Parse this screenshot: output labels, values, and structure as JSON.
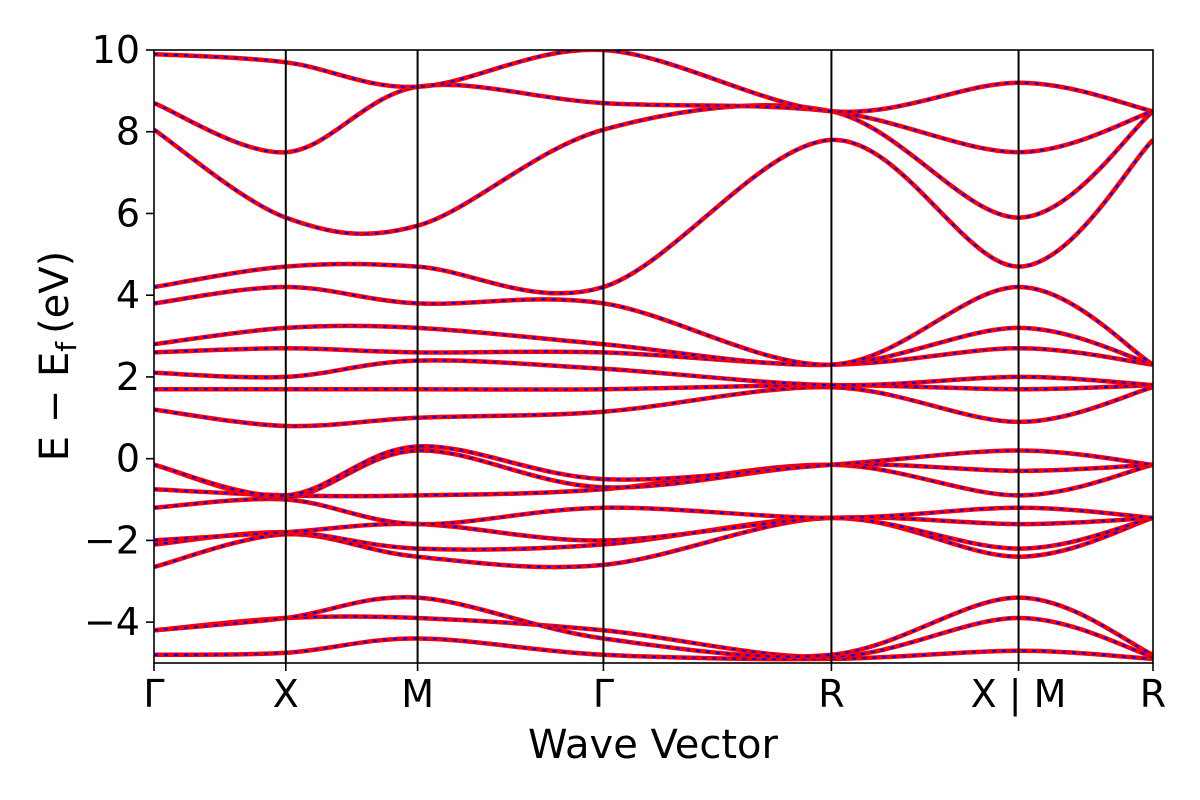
{
  "chart_data": {
    "type": "line",
    "title": "",
    "xlabel": "Wave Vector",
    "ylabel": "E − E",
    "ylabel_subscript": "f",
    "ylabel_unit": "(eV)",
    "ylim": [
      -5,
      10
    ],
    "yticks": [
      -4,
      -2,
      0,
      2,
      4,
      6,
      8,
      10
    ],
    "ytick_labels": [
      "−4",
      "−2",
      "0",
      "2",
      "4",
      "6",
      "8",
      "10"
    ],
    "xlim": [
      0,
      7.58
    ],
    "kpath": [
      {
        "label": "Γ",
        "x": 0.0
      },
      {
        "label": "X",
        "x": 1.0
      },
      {
        "label": "M",
        "x": 2.0
      },
      {
        "label": "Γ",
        "x": 3.41
      },
      {
        "label": "R",
        "x": 5.14
      },
      {
        "label": "X | M",
        "x": 6.56
      },
      {
        "label": "R",
        "x": 7.58
      }
    ],
    "grid": false,
    "legend": "none",
    "colors": {
      "band_solid": "#ff0000",
      "band_dashed": "#0000ff",
      "frame": "#000000"
    },
    "bands": [
      {
        "x": [
          0,
          1.0,
          2.0,
          3.41,
          5.14,
          6.56,
          7.58
        ],
        "y": [
          -4.8,
          -4.75,
          -4.4,
          -4.8,
          -4.9,
          -4.7,
          -4.9
        ]
      },
      {
        "x": [
          0,
          1.0,
          2.0,
          3.41,
          5.14,
          6.56,
          7.58
        ],
        "y": [
          -4.2,
          -3.9,
          -3.9,
          -4.2,
          -4.85,
          -3.9,
          -4.85
        ]
      },
      {
        "x": [
          0,
          1.0,
          2.0,
          3.41,
          5.14,
          6.56,
          7.58
        ],
        "y": [
          -4.2,
          -3.9,
          -3.4,
          -4.4,
          -4.8,
          -3.4,
          -4.8
        ]
      },
      {
        "x": [
          0,
          1.0,
          2.0,
          3.41,
          5.14,
          6.56,
          7.58
        ],
        "y": [
          -2.65,
          -1.85,
          -2.4,
          -2.6,
          -1.45,
          -2.4,
          -1.45
        ]
      },
      {
        "x": [
          0,
          1.0,
          2.0,
          3.41,
          5.14,
          6.56,
          7.58
        ],
        "y": [
          -2.1,
          -1.8,
          -2.2,
          -2.1,
          -1.45,
          -2.2,
          -1.45
        ]
      },
      {
        "x": [
          0,
          1.0,
          2.0,
          3.41,
          5.14,
          6.56,
          7.58
        ],
        "y": [
          -2.0,
          -1.8,
          -1.6,
          -2.0,
          -1.45,
          -1.6,
          -1.45
        ]
      },
      {
        "x": [
          0,
          1.0,
          2.0,
          3.41,
          5.14,
          6.56,
          7.58
        ],
        "y": [
          -1.2,
          -1.0,
          -1.6,
          -1.2,
          -1.45,
          -1.2,
          -1.45
        ]
      },
      {
        "x": [
          0,
          1.0,
          2.0,
          3.41,
          5.14,
          6.56,
          7.58
        ],
        "y": [
          -0.75,
          -0.9,
          -0.9,
          -0.75,
          -0.15,
          -0.9,
          -0.15
        ]
      },
      {
        "x": [
          0,
          1.0,
          2.0,
          3.41,
          5.14,
          6.56,
          7.58
        ],
        "y": [
          -0.15,
          -0.95,
          0.2,
          -0.7,
          -0.15,
          -0.3,
          -0.15
        ]
      },
      {
        "x": [
          0,
          1.0,
          2.0,
          3.41,
          5.14,
          6.56,
          7.58
        ],
        "y": [
          -0.15,
          -0.9,
          0.3,
          -0.5,
          -0.15,
          0.2,
          -0.15
        ]
      },
      {
        "x": [
          0,
          1.0,
          2.0,
          3.41,
          5.14,
          6.56,
          7.58
        ],
        "y": [
          1.2,
          0.8,
          1.0,
          1.15,
          1.75,
          0.9,
          1.75
        ]
      },
      {
        "x": [
          0,
          1.0,
          2.0,
          3.41,
          5.14,
          6.56,
          7.58
        ],
        "y": [
          1.7,
          1.7,
          1.7,
          1.7,
          1.8,
          1.7,
          1.8
        ]
      },
      {
        "x": [
          0,
          1.0,
          2.0,
          3.41,
          5.14,
          6.56,
          7.58
        ],
        "y": [
          2.1,
          2.0,
          2.4,
          2.2,
          1.8,
          2.0,
          1.8
        ]
      },
      {
        "x": [
          0,
          1.0,
          2.0,
          3.41,
          5.14,
          6.56,
          7.58
        ],
        "y": [
          2.6,
          2.7,
          2.6,
          2.6,
          2.3,
          2.7,
          2.3
        ]
      },
      {
        "x": [
          0,
          1.0,
          2.0,
          3.41,
          5.14,
          6.56,
          7.58
        ],
        "y": [
          2.8,
          3.2,
          3.2,
          2.8,
          2.3,
          3.2,
          2.3
        ]
      },
      {
        "x": [
          0,
          1.0,
          2.0,
          3.41,
          5.14,
          6.56,
          7.58
        ],
        "y": [
          3.8,
          4.2,
          3.8,
          3.8,
          2.3,
          4.2,
          2.3
        ]
      },
      {
        "x": [
          0,
          1.0,
          2.0,
          3.41,
          5.14,
          6.56,
          7.58
        ],
        "y": [
          4.2,
          4.7,
          4.7,
          4.2,
          7.8,
          4.7,
          7.8
        ]
      },
      {
        "x": [
          0,
          1.0,
          2.0,
          3.41,
          5.14,
          6.56,
          7.58
        ],
        "y": [
          8.05,
          5.9,
          5.7,
          8.05,
          8.5,
          5.9,
          8.5
        ]
      },
      {
        "x": [
          0,
          1.0,
          2.0,
          3.41,
          5.14,
          6.56,
          7.58
        ],
        "y": [
          8.7,
          7.5,
          9.1,
          8.7,
          8.5,
          7.5,
          8.5
        ]
      },
      {
        "x": [
          0,
          1.0,
          2.0,
          3.41,
          5.14,
          6.56,
          7.58
        ],
        "y": [
          9.9,
          9.7,
          9.1,
          10.0,
          8.5,
          9.2,
          8.5
        ]
      }
    ]
  }
}
